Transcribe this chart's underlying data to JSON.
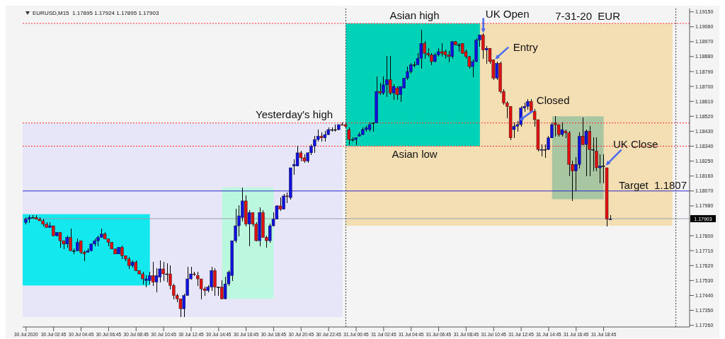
{
  "chart_data": {
    "type": "candlestick",
    "title": "EURUSD,M15  1.17895 1.17924 1.17895 1.17903",
    "x": [
      "2020-07-30T00:45",
      "2020-07-30T01:00",
      "2020-07-30T01:15",
      "2020-07-30T01:30",
      "2020-07-30T01:45",
      "2020-07-30T02:00",
      "2020-07-30T02:15",
      "2020-07-30T02:30",
      "2020-07-30T02:45",
      "2020-07-30T03:00",
      "2020-07-30T03:15",
      "2020-07-30T03:30",
      "2020-07-30T03:45",
      "2020-07-30T04:00",
      "2020-07-30T04:15",
      "2020-07-30T04:30",
      "2020-07-30T04:45",
      "2020-07-30T05:00",
      "2020-07-30T05:15",
      "2020-07-30T05:30",
      "2020-07-30T05:45",
      "2020-07-30T06:00",
      "2020-07-30T06:15",
      "2020-07-30T06:30",
      "2020-07-30T06:45",
      "2020-07-30T07:00",
      "2020-07-30T07:15",
      "2020-07-30T07:30",
      "2020-07-30T07:45",
      "2020-07-30T08:00",
      "2020-07-30T08:15",
      "2020-07-30T08:30",
      "2020-07-30T08:45",
      "2020-07-30T09:00",
      "2020-07-30T09:15",
      "2020-07-30T09:30",
      "2020-07-30T09:45",
      "2020-07-30T10:00",
      "2020-07-30T10:15",
      "2020-07-30T10:30",
      "2020-07-30T10:45",
      "2020-07-30T11:00",
      "2020-07-30T11:15",
      "2020-07-30T11:30",
      "2020-07-30T11:45",
      "2020-07-30T12:00",
      "2020-07-30T12:15",
      "2020-07-30T12:30",
      "2020-07-30T12:45",
      "2020-07-30T13:00",
      "2020-07-30T13:15",
      "2020-07-30T13:30",
      "2020-07-30T13:45",
      "2020-07-30T14:00",
      "2020-07-30T14:15",
      "2020-07-30T14:30",
      "2020-07-30T14:45",
      "2020-07-30T15:00",
      "2020-07-30T15:15",
      "2020-07-30T15:30",
      "2020-07-30T15:45",
      "2020-07-30T16:00",
      "2020-07-30T16:15",
      "2020-07-30T16:30",
      "2020-07-30T16:45",
      "2020-07-30T17:00",
      "2020-07-30T17:15",
      "2020-07-30T17:30",
      "2020-07-30T17:45",
      "2020-07-30T18:00",
      "2020-07-30T18:15",
      "2020-07-30T18:30",
      "2020-07-30T18:45",
      "2020-07-30T19:00",
      "2020-07-30T19:15",
      "2020-07-30T19:30",
      "2020-07-30T19:45",
      "2020-07-30T20:00",
      "2020-07-30T20:15",
      "2020-07-30T20:30",
      "2020-07-30T20:45",
      "2020-07-30T21:00",
      "2020-07-30T21:15",
      "2020-07-30T21:30",
      "2020-07-30T21:45",
      "2020-07-30T22:00",
      "2020-07-30T22:15",
      "2020-07-30T22:30",
      "2020-07-30T22:45",
      "2020-07-30T23:00",
      "2020-07-30T23:15",
      "2020-07-30T23:30",
      "2020-07-30T23:45",
      "2020-07-31T00:00",
      "2020-07-31T00:15",
      "2020-07-31T00:30",
      "2020-07-31T00:45",
      "2020-07-31T01:00",
      "2020-07-31T01:15",
      "2020-07-31T01:30",
      "2020-07-31T01:45",
      "2020-07-31T02:00",
      "2020-07-31T02:15",
      "2020-07-31T02:30",
      "2020-07-31T02:45",
      "2020-07-31T03:00",
      "2020-07-31T03:15",
      "2020-07-31T03:30",
      "2020-07-31T03:45",
      "2020-07-31T04:00",
      "2020-07-31T04:15",
      "2020-07-31T04:30",
      "2020-07-31T04:45",
      "2020-07-31T05:00",
      "2020-07-31T05:15",
      "2020-07-31T05:30",
      "2020-07-31T05:45",
      "2020-07-31T06:00",
      "2020-07-31T06:15",
      "2020-07-31T06:30",
      "2020-07-31T06:45",
      "2020-07-31T07:00",
      "2020-07-31T07:15",
      "2020-07-31T07:30",
      "2020-07-31T07:45",
      "2020-07-31T08:00",
      "2020-07-31T08:15",
      "2020-07-31T08:30",
      "2020-07-31T08:45",
      "2020-07-31T09:00",
      "2020-07-31T09:15",
      "2020-07-31T09:30",
      "2020-07-31T09:45",
      "2020-07-31T10:00",
      "2020-07-31T10:15",
      "2020-07-31T10:30",
      "2020-07-31T10:45",
      "2020-07-31T11:00",
      "2020-07-31T11:15",
      "2020-07-31T11:30",
      "2020-07-31T11:45",
      "2020-07-31T12:00",
      "2020-07-31T12:15",
      "2020-07-31T12:30",
      "2020-07-31T12:45",
      "2020-07-31T13:00",
      "2020-07-31T13:15",
      "2020-07-31T13:30",
      "2020-07-31T13:45",
      "2020-07-31T14:00",
      "2020-07-31T14:15",
      "2020-07-31T14:30",
      "2020-07-31T14:45",
      "2020-07-31T15:00",
      "2020-07-31T15:15",
      "2020-07-31T15:30",
      "2020-07-31T15:45",
      "2020-07-31T16:00",
      "2020-07-31T16:15",
      "2020-07-31T16:30",
      "2020-07-31T16:45",
      "2020-07-31T17:00",
      "2020-07-31T17:15",
      "2020-07-31T17:30",
      "2020-07-31T17:45",
      "2020-07-31T18:00",
      "2020-07-31T18:15",
      "2020-07-31T18:30",
      "2020-07-31T18:45",
      "2020-07-31T19:00",
      "2020-07-31T19:15"
    ],
    "ohlc": [
      [
        1.1788,
        1.1791,
        1.1787,
        1.179
      ],
      [
        1.179,
        1.1792,
        1.1788,
        1.1791
      ],
      [
        1.1791,
        1.1792,
        1.1791,
        1.1791
      ],
      [
        1.1791,
        1.1792,
        1.179,
        1.179
      ],
      [
        1.179,
        1.1791,
        1.1789,
        1.1789
      ],
      [
        1.1789,
        1.179,
        1.1786,
        1.1787
      ],
      [
        1.1787,
        1.1788,
        1.1785,
        1.1785
      ],
      [
        1.1785,
        1.1788,
        1.1785,
        1.1786
      ],
      [
        1.1786,
        1.1786,
        1.178,
        1.178
      ],
      [
        1.178,
        1.1782,
        1.178,
        1.1782
      ],
      [
        1.1782,
        1.1782,
        1.1773,
        1.1777
      ],
      [
        1.1777,
        1.1777,
        1.1772,
        1.1775
      ],
      [
        1.1775,
        1.178,
        1.1773,
        1.1779
      ],
      [
        1.1779,
        1.1784,
        1.1771,
        1.1771
      ],
      [
        1.1771,
        1.1772,
        1.1769,
        1.1771
      ],
      [
        1.1771,
        1.1778,
        1.1771,
        1.1776
      ],
      [
        1.1777,
        1.1777,
        1.1769,
        1.177
      ],
      [
        1.177,
        1.1771,
        1.1765,
        1.1769
      ],
      [
        1.177,
        1.1772,
        1.177,
        1.1771
      ],
      [
        1.1771,
        1.1775,
        1.1771,
        1.1775
      ],
      [
        1.1775,
        1.1778,
        1.1774,
        1.1777
      ],
      [
        1.1777,
        1.178,
        1.1774,
        1.1779
      ],
      [
        1.1779,
        1.1784,
        1.1779,
        1.1781
      ],
      [
        1.1781,
        1.1782,
        1.1778,
        1.1778
      ],
      [
        1.1778,
        1.1778,
        1.1774,
        1.1776
      ],
      [
        1.1776,
        1.1776,
        1.1772,
        1.1772
      ],
      [
        1.1772,
        1.1772,
        1.1769,
        1.1769
      ],
      [
        1.1769,
        1.1773,
        1.1769,
        1.1773
      ],
      [
        1.1773,
        1.1774,
        1.1766,
        1.1768
      ],
      [
        1.1768,
        1.1768,
        1.1765,
        1.1766
      ],
      [
        1.1766,
        1.1767,
        1.176,
        1.1762
      ],
      [
        1.1762,
        1.1765,
        1.1761,
        1.1764
      ],
      [
        1.1764,
        1.1765,
        1.1759,
        1.1759
      ],
      [
        1.1759,
        1.1759,
        1.1757,
        1.1757
      ],
      [
        1.1757,
        1.1758,
        1.1751,
        1.1754
      ],
      [
        1.1753,
        1.1756,
        1.1749,
        1.1754
      ],
      [
        1.1753,
        1.1758,
        1.1751,
        1.1756
      ],
      [
        1.1756,
        1.1764,
        1.175,
        1.1752
      ],
      [
        1.1752,
        1.176,
        1.1746,
        1.1756
      ],
      [
        1.1755,
        1.1765,
        1.1752,
        1.176
      ],
      [
        1.176,
        1.1764,
        1.1753,
        1.1757
      ],
      [
        1.1757,
        1.1763,
        1.1752,
        1.1757
      ],
      [
        1.1757,
        1.1762,
        1.1748,
        1.175
      ],
      [
        1.175,
        1.1751,
        1.1742,
        1.1744
      ],
      [
        1.1744,
        1.1745,
        1.174,
        1.1742
      ],
      [
        1.1742,
        1.1742,
        1.1731,
        1.1736
      ],
      [
        1.1736,
        1.1745,
        1.1731,
        1.1744
      ],
      [
        1.1744,
        1.1761,
        1.1744,
        1.1754
      ],
      [
        1.1754,
        1.1761,
        1.1754,
        1.1757
      ],
      [
        1.1757,
        1.1758,
        1.1756,
        1.1757
      ],
      [
        1.1756,
        1.1758,
        1.175,
        1.1754
      ],
      [
        1.1754,
        1.1754,
        1.1742,
        1.1748
      ],
      [
        1.1748,
        1.1749,
        1.1744,
        1.1747
      ],
      [
        1.1747,
        1.175,
        1.1746,
        1.1749
      ],
      [
        1.1749,
        1.1761,
        1.1747,
        1.1759
      ],
      [
        1.1759,
        1.176,
        1.1744,
        1.1749
      ],
      [
        1.1749,
        1.1749,
        1.1744,
        1.1749
      ],
      [
        1.1749,
        1.1753,
        1.1742,
        1.1742
      ],
      [
        1.1742,
        1.1755,
        1.1742,
        1.1751
      ],
      [
        1.1751,
        1.1759,
        1.175,
        1.1758
      ],
      [
        1.1756,
        1.1777,
        1.1753,
        1.1777
      ],
      [
        1.1777,
        1.1796,
        1.1776,
        1.1786
      ],
      [
        1.1786,
        1.1798,
        1.178,
        1.1792
      ],
      [
        1.1791,
        1.1809,
        1.1789,
        1.1801
      ],
      [
        1.1801,
        1.1804,
        1.1786,
        1.1787
      ],
      [
        1.1787,
        1.1795,
        1.1774,
        1.1794
      ],
      [
        1.1794,
        1.1794,
        1.1786,
        1.1787
      ],
      [
        1.1787,
        1.1788,
        1.1777,
        1.1777
      ],
      [
        1.1777,
        1.1797,
        1.1774,
        1.1794
      ],
      [
        1.1794,
        1.1795,
        1.1779,
        1.1779
      ],
      [
        1.1779,
        1.178,
        1.1773,
        1.1777
      ],
      [
        1.1777,
        1.1787,
        1.1776,
        1.1786
      ],
      [
        1.1786,
        1.1794,
        1.1786,
        1.179
      ],
      [
        1.179,
        1.1798,
        1.179,
        1.1798
      ],
      [
        1.1798,
        1.1803,
        1.1795,
        1.1796
      ],
      [
        1.1796,
        1.1805,
        1.1796,
        1.1804
      ],
      [
        1.1804,
        1.1806,
        1.18,
        1.1804
      ],
      [
        1.1803,
        1.1821,
        1.1802,
        1.1821
      ],
      [
        1.1822,
        1.1826,
        1.1817,
        1.1823
      ],
      [
        1.1822,
        1.1834,
        1.1822,
        1.183
      ],
      [
        1.183,
        1.1831,
        1.1825,
        1.1827
      ],
      [
        1.1827,
        1.1829,
        1.1824,
        1.1825
      ],
      [
        1.1825,
        1.183,
        1.1824,
        1.183
      ],
      [
        1.183,
        1.1835,
        1.1829,
        1.1834
      ],
      [
        1.1834,
        1.184,
        1.183,
        1.1838
      ],
      [
        1.1838,
        1.1844,
        1.1837,
        1.184
      ],
      [
        1.184,
        1.1842,
        1.1837,
        1.1839
      ],
      [
        1.1839,
        1.1843,
        1.1837,
        1.1841
      ],
      [
        1.1841,
        1.1845,
        1.1841,
        1.1844
      ],
      [
        1.1844,
        1.1845,
        1.1843,
        1.1844
      ],
      [
        1.1844,
        1.1847,
        1.1843,
        1.1844
      ],
      [
        1.1844,
        1.1847,
        1.1844,
        1.1847
      ],
      [
        1.1847,
        1.1848,
        1.1847,
        1.1847
      ],
      [
        1.1847,
        1.1848,
        1.1845,
        1.1846
      ],
      [
        1.1844,
        1.1845,
        1.1835,
        1.1838
      ],
      [
        1.1838,
        1.1839,
        1.1837,
        1.1838
      ],
      [
        1.1838,
        1.1839,
        1.1835,
        1.1839
      ],
      [
        1.184,
        1.1842,
        1.184,
        1.1841
      ],
      [
        1.1841,
        1.1845,
        1.1841,
        1.1844
      ],
      [
        1.1844,
        1.1846,
        1.1843,
        1.1845
      ],
      [
        1.1844,
        1.1848,
        1.1843,
        1.1847
      ],
      [
        1.1848,
        1.1848,
        1.1843,
        1.1848
      ],
      [
        1.1848,
        1.1876,
        1.1848,
        1.1867
      ],
      [
        1.1867,
        1.1872,
        1.1865,
        1.1866
      ],
      [
        1.1866,
        1.1876,
        1.1865,
        1.1871
      ],
      [
        1.1871,
        1.1888,
        1.1864,
        1.1874
      ],
      [
        1.1874,
        1.1888,
        1.1865,
        1.1866
      ],
      [
        1.1866,
        1.1871,
        1.1862,
        1.187
      ],
      [
        1.1869,
        1.187,
        1.1862,
        1.1865
      ],
      [
        1.1865,
        1.187,
        1.1861,
        1.187
      ],
      [
        1.1869,
        1.1875,
        1.1869,
        1.1875
      ],
      [
        1.1875,
        1.1882,
        1.1874,
        1.1879
      ],
      [
        1.1879,
        1.1884,
        1.1878,
        1.1883
      ],
      [
        1.1883,
        1.1885,
        1.1882,
        1.1883
      ],
      [
        1.1883,
        1.189,
        1.1883,
        1.1887
      ],
      [
        1.1887,
        1.1904,
        1.1881,
        1.1896
      ],
      [
        1.1896,
        1.1897,
        1.1887,
        1.189
      ],
      [
        1.189,
        1.1893,
        1.1888,
        1.1889
      ],
      [
        1.1889,
        1.189,
        1.1883,
        1.1885
      ],
      [
        1.1885,
        1.189,
        1.1885,
        1.1889
      ],
      [
        1.1889,
        1.1893,
        1.1888,
        1.1891
      ],
      [
        1.1891,
        1.1896,
        1.1888,
        1.189
      ],
      [
        1.1891,
        1.1892,
        1.1887,
        1.1889
      ],
      [
        1.1889,
        1.1891,
        1.1885,
        1.1888
      ],
      [
        1.1888,
        1.1897,
        1.1887,
        1.1897
      ],
      [
        1.1897,
        1.1897,
        1.1895,
        1.1895
      ],
      [
        1.1895,
        1.1896,
        1.1891,
        1.1895
      ],
      [
        1.1896,
        1.1896,
        1.189,
        1.189
      ],
      [
        1.1891,
        1.1892,
        1.1887,
        1.1888
      ],
      [
        1.1888,
        1.1888,
        1.1881,
        1.1882
      ],
      [
        1.1882,
        1.1886,
        1.1876,
        1.1885
      ],
      [
        1.1885,
        1.1899,
        1.1885,
        1.1898
      ],
      [
        1.1898,
        1.1901,
        1.1894,
        1.1901
      ],
      [
        1.1901,
        1.1902,
        1.1887,
        1.1892
      ],
      [
        1.1892,
        1.1894,
        1.1884,
        1.1893
      ],
      [
        1.1893,
        1.1893,
        1.1884,
        1.1885
      ],
      [
        1.1886,
        1.1886,
        1.1874,
        1.1875
      ],
      [
        1.1875,
        1.1885,
        1.1874,
        1.1884
      ],
      [
        1.1884,
        1.1885,
        1.1866,
        1.1867
      ],
      [
        1.1867,
        1.1868,
        1.1859,
        1.186
      ],
      [
        1.186,
        1.1861,
        1.1851,
        1.1858
      ],
      [
        1.1858,
        1.1858,
        1.1838,
        1.1839
      ],
      [
        1.1844,
        1.1848,
        1.1839,
        1.1846
      ],
      [
        1.1846,
        1.1849,
        1.1843,
        1.1847
      ],
      [
        1.1847,
        1.1858,
        1.1846,
        1.1857
      ],
      [
        1.1857,
        1.186,
        1.1855,
        1.1858
      ],
      [
        1.1858,
        1.1862,
        1.1856,
        1.1861
      ],
      [
        1.1861,
        1.1862,
        1.1855,
        1.1855
      ],
      [
        1.1855,
        1.1856,
        1.1846,
        1.185
      ],
      [
        1.185,
        1.185,
        1.1831,
        1.1832
      ],
      [
        1.1832,
        1.1835,
        1.1828,
        1.1832
      ],
      [
        1.1832,
        1.1835,
        1.1827,
        1.1832
      ],
      [
        1.1832,
        1.184,
        1.1832,
        1.1839
      ],
      [
        1.1839,
        1.1848,
        1.1839,
        1.1847
      ],
      [
        1.1848,
        1.1852,
        1.184,
        1.1847
      ],
      [
        1.1847,
        1.1847,
        1.184,
        1.1841
      ],
      [
        1.1841,
        1.1848,
        1.184,
        1.1844
      ],
      [
        1.1843,
        1.1844,
        1.1839,
        1.1842
      ],
      [
        1.1842,
        1.1843,
        1.1816,
        1.1823
      ],
      [
        1.1823,
        1.1825,
        1.1801,
        1.1819
      ],
      [
        1.1819,
        1.1827,
        1.1807,
        1.1823
      ],
      [
        1.1823,
        1.1842,
        1.1821,
        1.184
      ],
      [
        1.184,
        1.1851,
        1.1835,
        1.1835
      ],
      [
        1.1835,
        1.1844,
        1.1816,
        1.1843
      ],
      [
        1.1843,
        1.1846,
        1.1816,
        1.1832
      ],
      [
        1.1832,
        1.1839,
        1.1819,
        1.1832
      ],
      [
        1.1831,
        1.1839,
        1.1819,
        1.1821
      ],
      [
        1.1821,
        1.1829,
        1.1812,
        1.1822
      ],
      [
        1.1822,
        1.1829,
        1.1812,
        1.1822
      ],
      [
        1.1821,
        1.1821,
        1.1786,
        1.179
      ],
      [
        1.179,
        1.1792,
        1.179,
        1.179
      ]
    ],
    "colors": [
      "#1010e0",
      "#1010e0",
      "#000000",
      "#e01010",
      "#e01010",
      "#e01010",
      "#e01010",
      "#1010e0",
      "#e01010",
      "#1010e0",
      "#e01010",
      "#e01010",
      "#1010e0",
      "#e01010",
      "#000000",
      "#1010e0",
      "#e01010",
      "#e01010",
      "#1010e0",
      "#1010e0",
      "#1010e0",
      "#1010e0",
      "#1010e0",
      "#e01010",
      "#e01010",
      "#e01010",
      "#e01010",
      "#1010e0",
      "#e01010",
      "#e01010",
      "#e01010",
      "#1010e0",
      "#e01010",
      "#e01010",
      "#e01010",
      "#1010e0",
      "#1010e0",
      "#e01010",
      "#1010e0",
      "#1010e0",
      "#e01010",
      "#000000",
      "#e01010",
      "#e01010",
      "#e01010",
      "#e01010",
      "#1010e0",
      "#1010e0",
      "#1010e0",
      "#e01010",
      "#e01010",
      "#e01010",
      "#e01010",
      "#1010e0",
      "#1010e0",
      "#e01010",
      "#000000",
      "#e01010",
      "#1010e0",
      "#1010e0",
      "#1010e0",
      "#1010e0",
      "#1010e0",
      "#1010e0",
      "#e01010",
      "#1010e0",
      "#e01010",
      "#e01010",
      "#1010e0",
      "#e01010",
      "#e01010",
      "#1010e0",
      "#1010e0",
      "#1010e0",
      "#e01010",
      "#1010e0",
      "#e01010",
      "#1010e0",
      "#1010e0",
      "#1010e0",
      "#e01010",
      "#e01010",
      "#1010e0",
      "#1010e0",
      "#1010e0",
      "#1010e0",
      "#e01010",
      "#1010e0",
      "#1010e0",
      "#000000",
      "#000000",
      "#1010e0",
      "#e01010",
      "#e01010",
      "#e01010",
      "#000000",
      "#1010e0",
      "#1010e0",
      "#1010e0",
      "#1010e0",
      "#1010e0",
      "#000000",
      "#1010e0",
      "#e01010",
      "#1010e0",
      "#1010e0",
      "#e01010",
      "#1010e0",
      "#e01010",
      "#1010e0",
      "#1010e0",
      "#1010e0",
      "#1010e0",
      "#000000",
      "#1010e0",
      "#1010e0",
      "#e01010",
      "#e01010",
      "#e01010",
      "#1010e0",
      "#1010e0",
      "#e01010",
      "#e01010",
      "#e01010",
      "#1010e0",
      "#e01010",
      "#000000",
      "#e01010",
      "#e01010",
      "#e01010",
      "#1010e0",
      "#1010e0",
      "#1010e0",
      "#e01010",
      "#1010e0",
      "#e01010",
      "#e01010",
      "#1010e0",
      "#e01010",
      "#e01010",
      "#e01010",
      "#e01010",
      "#1010e0",
      "#1010e0",
      "#1010e0",
      "#1010e0",
      "#1010e0",
      "#e01010",
      "#e01010",
      "#e01010",
      "#1010e0",
      "#000000",
      "#1010e0",
      "#1010e0",
      "#e01010",
      "#e01010",
      "#1010e0",
      "#e01010",
      "#e01010",
      "#e01010",
      "#1010e0",
      "#1010e0",
      "#e01010",
      "#1010e0",
      "#e01010",
      "#000000",
      "#e01010",
      "#1010e0",
      "#000000",
      "#e01010",
      "#1010e0"
    ],
    "xlim": [
      "2020-07-30T00:30",
      "2020-08-01T01:00"
    ],
    "xticks": [
      {
        "value": "2020-07-30T00:45",
        "label": "30 Jul 2020"
      },
      {
        "value": "2020-07-30T02:45",
        "label": "30 Jul 02:45"
      },
      {
        "value": "2020-07-30T04:45",
        "label": "30 Jul 04:45"
      },
      {
        "value": "2020-07-30T06:45",
        "label": "30 Jul 06:45"
      },
      {
        "value": "2020-07-30T08:45",
        "label": "30 Jul 08:45"
      },
      {
        "value": "2020-07-30T10:45",
        "label": "30 Jul 10:45"
      },
      {
        "value": "2020-07-30T12:45",
        "label": "30 Jul 12:45"
      },
      {
        "value": "2020-07-30T14:45",
        "label": "30 Jul 14:45"
      },
      {
        "value": "2020-07-30T16:45",
        "label": "30 Jul 16:45"
      },
      {
        "value": "2020-07-30T18:45",
        "label": "30 Jul 18:45"
      },
      {
        "value": "2020-07-30T20:45",
        "label": "30 Jul 20:45"
      },
      {
        "value": "2020-07-30T22:45",
        "label": "30 Jul 22:45"
      },
      {
        "value": "2020-07-31T00:45",
        "label": "31 Jul 00:45"
      },
      {
        "value": "2020-07-31T02:45",
        "label": "31 Jul 02:45"
      },
      {
        "value": "2020-07-31T04:45",
        "label": "31 Jul 04:45"
      },
      {
        "value": "2020-07-31T06:45",
        "label": "31 Jul 06:45"
      },
      {
        "value": "2020-07-31T08:45",
        "label": "31 Jul 08:45"
      },
      {
        "value": "2020-07-31T10:45",
        "label": "31 Jul 10:45"
      },
      {
        "value": "2020-07-31T12:45",
        "label": "31 Jul 12:45"
      },
      {
        "value": "2020-07-31T14:45",
        "label": "31 Jul 14:45"
      },
      {
        "value": "2020-07-31T16:45",
        "label": "31 Jul 16:45"
      },
      {
        "value": "2020-07-31T18:45",
        "label": "31 Jul 18:45"
      }
    ],
    "ylim": [
      1.1725,
      1.1917
    ],
    "yticks": [
      {
        "value": 1.1915,
        "label": "1.19150"
      },
      {
        "value": 1.1906,
        "label": "1.19060"
      },
      {
        "value": 1.1897,
        "label": "1.18970"
      },
      {
        "value": 1.1888,
        "label": "1.18880"
      },
      {
        "value": 1.1879,
        "label": "1.18790"
      },
      {
        "value": 1.187,
        "label": "1.18700"
      },
      {
        "value": 1.1861,
        "label": "1.18610"
      },
      {
        "value": 1.1852,
        "label": "1.18520"
      },
      {
        "value": 1.1843,
        "label": "1.18430"
      },
      {
        "value": 1.1834,
        "label": "1.18340"
      },
      {
        "value": 1.1825,
        "label": "1.18250"
      },
      {
        "value": 1.1816,
        "label": "1.18160"
      },
      {
        "value": 1.1807,
        "label": "1.18070"
      },
      {
        "value": 1.1798,
        "label": "1.17980"
      },
      {
        "value": 1.178,
        "label": "1.17800"
      },
      {
        "value": 1.1771,
        "label": "1.17710"
      },
      {
        "value": 1.1762,
        "label": "1.17620"
      },
      {
        "value": 1.1753,
        "label": "1.17530"
      },
      {
        "value": 1.1744,
        "label": "1.17440"
      },
      {
        "value": 1.1735,
        "label": "1.17350"
      },
      {
        "value": 1.1726,
        "label": "1.17260"
      }
    ],
    "ref_lines": [
      {
        "axis": "y",
        "value": 1.1908,
        "color": "#ff3030",
        "line_style": "dotted"
      },
      {
        "axis": "y",
        "value": 1.1848,
        "color": "#ff3030",
        "line_style": "dotted"
      },
      {
        "axis": "y",
        "value": 1.1834,
        "color": "#ff3030",
        "line_style": "dotted"
      },
      {
        "axis": "y",
        "value": 1.1807,
        "label": "Target  1.1807",
        "color": "#2828c8",
        "line_style": "solid"
      },
      {
        "axis": "y",
        "value": 1.17903,
        "label": "1.17903",
        "color": "#9aa0b0",
        "line_style": "solid"
      },
      {
        "axis": "x",
        "value": "2020-07-31T00:00",
        "color": "#404040",
        "line_style": "dotted"
      },
      {
        "axis": "x",
        "value": "2020-08-01T00:00",
        "color": "#404040",
        "line_style": "dotted"
      }
    ],
    "annotations": [
      "7-31-20  EUR",
      {
        "text": "Asian high",
        "x": "2020-07-31T05:00",
        "y": 1.1908
      },
      {
        "text": "Asian low",
        "x": "2020-07-31T05:00",
        "y": 1.1834
      },
      {
        "text": "Yesterday's high",
        "x": "2020-07-30T20:15",
        "y": 1.1848
      },
      {
        "text": "UK Open",
        "x": "2020-07-31T10:00",
        "y": 1.1901
      },
      {
        "text": "Entry",
        "x": "2020-07-31T10:45",
        "y": 1.1886
      },
      {
        "text": "Closed",
        "x": "2020-07-31T12:30",
        "y": 1.1849
      },
      {
        "text": "UK Close",
        "x": "2020-07-31T18:45",
        "y": 1.1822
      }
    ]
  }
}
